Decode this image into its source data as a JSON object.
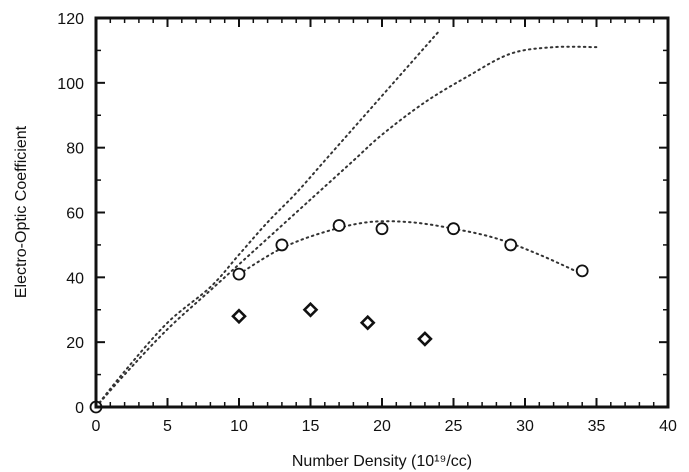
{
  "chart_data": {
    "type": "scatter",
    "xlabel": "Number Density (10¹⁹/cc)",
    "ylabel": "Electro-Optic Coefficient",
    "xlim": [
      0,
      40
    ],
    "ylim": [
      0,
      120
    ],
    "xticks": [
      0,
      5,
      10,
      15,
      20,
      25,
      30,
      35,
      40
    ],
    "yticks": [
      0,
      20,
      40,
      60,
      80,
      100,
      120
    ],
    "grid": false,
    "legend": "none",
    "series": [
      {
        "kind": "points",
        "marker": "circle",
        "x": [
          0,
          10,
          13,
          17,
          20,
          25,
          29,
          34
        ],
        "y": [
          0,
          41,
          50,
          56,
          55,
          55,
          50,
          42
        ]
      },
      {
        "kind": "points",
        "marker": "diamond",
        "x": [
          10,
          15,
          19,
          23
        ],
        "y": [
          28,
          30,
          26,
          21
        ]
      },
      {
        "kind": "curve",
        "style": "dotted",
        "x": [
          0,
          2,
          5,
          8,
          10,
          12,
          14,
          16,
          18,
          20,
          22,
          24
        ],
        "y": [
          0,
          11,
          26,
          37,
          47,
          57,
          66,
          76,
          86,
          96,
          106,
          116
        ]
      },
      {
        "kind": "curve",
        "style": "dotted",
        "x": [
          0,
          2,
          5,
          8,
          10,
          12,
          15,
          18,
          20,
          23,
          26,
          29,
          32,
          35
        ],
        "y": [
          0,
          10,
          24,
          36,
          44,
          52,
          64,
          76,
          84,
          94,
          102,
          109,
          111,
          111
        ]
      },
      {
        "kind": "curve",
        "style": "dotted",
        "x": [
          10,
          13,
          16,
          19,
          22,
          25,
          28,
          31,
          34
        ],
        "y": [
          41,
          49,
          54,
          57,
          57,
          55,
          52,
          47,
          41
        ]
      }
    ]
  }
}
